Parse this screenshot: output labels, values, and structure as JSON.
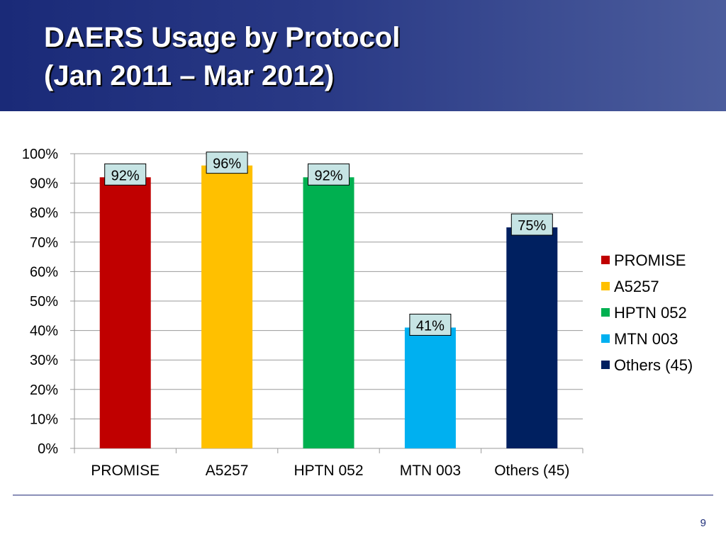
{
  "slide": {
    "title_line1": "DAERS Usage by Protocol",
    "title_line2": "(Jan 2011 – Mar 2012)",
    "page_number": "9"
  },
  "chart_data": {
    "type": "bar",
    "categories": [
      "PROMISE",
      "A5257",
      "HPTN 052",
      "MTN 003",
      "Others (45)"
    ],
    "values": [
      92,
      96,
      92,
      41,
      75
    ],
    "data_labels": [
      "92%",
      "96%",
      "92%",
      "41%",
      "75%"
    ],
    "colors": [
      "#c00000",
      "#ffc000",
      "#00b050",
      "#00b0f0",
      "#002060"
    ],
    "legend": [
      "PROMISE",
      "A5257",
      "HPTN 052",
      "MTN 003",
      "Others (45)"
    ],
    "legend_position": "right",
    "y_ticks": [
      "0%",
      "10%",
      "20%",
      "30%",
      "40%",
      "50%",
      "60%",
      "70%",
      "80%",
      "90%",
      "100%"
    ],
    "ylim": [
      0,
      100
    ],
    "grid": true
  }
}
